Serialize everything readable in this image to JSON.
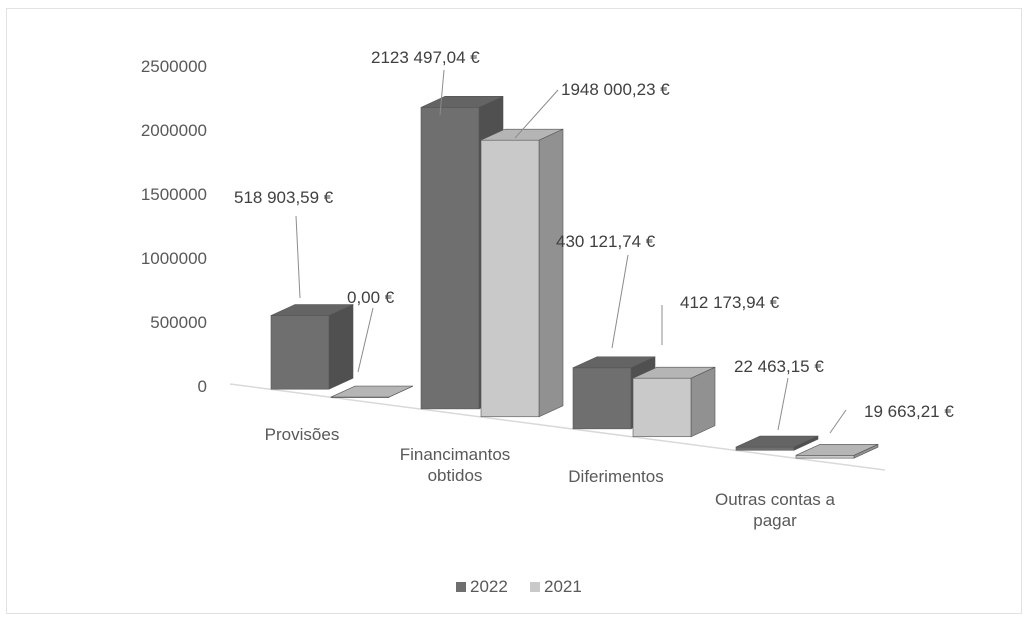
{
  "chart_data": {
    "type": "bar",
    "subtype": "3d-clustered-column",
    "title": "",
    "xlabel": "",
    "ylabel": "",
    "ylim": [
      0,
      2500000
    ],
    "yticks": [
      "0",
      "500000",
      "1000000",
      "1500000",
      "2000000",
      "2500000"
    ],
    "categories": [
      [
        "Provisões"
      ],
      [
        "Financimantos",
        "obtidos"
      ],
      [
        "Diferimentos"
      ],
      [
        "Outras contas a",
        "pagar"
      ]
    ],
    "series": [
      {
        "name": "2022",
        "color": "#6f6f6f",
        "values": [
          518903.59,
          2123497.04,
          430121.74,
          22463.15
        ],
        "labels": [
          "518 903,59 €",
          "2123 497,04 €",
          "430 121,74 €",
          "22 463,15 €"
        ]
      },
      {
        "name": "2021",
        "color": "#c9c9c9",
        "values": [
          0.0,
          1948000.23,
          412173.94,
          19663.21
        ],
        "labels": [
          "0,00 €",
          "1948 000,23 €",
          "412 173,94 €",
          "19 663,21 €"
        ]
      }
    ],
    "grid": false,
    "legend": "bottom"
  }
}
